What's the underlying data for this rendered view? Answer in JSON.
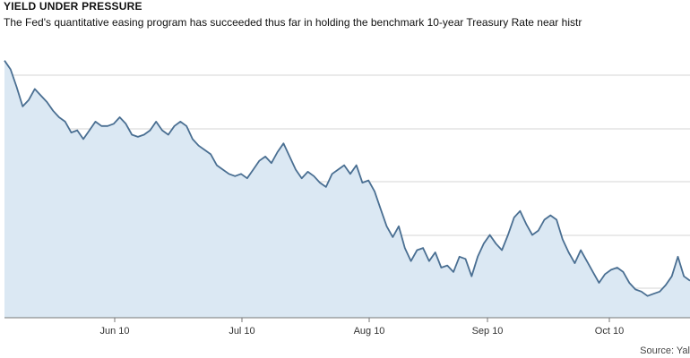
{
  "header": {
    "title": "YIELD UNDER PRESSURE",
    "subtitle": "The Fed's quantitative easing program has succeeded thus far in holding the benchmark 10-year Treasury Rate near histr"
  },
  "footer": {
    "source": "Source: Yal"
  },
  "colors": {
    "line": "#4a6f92",
    "fill": "#dbe8f3",
    "grid": "#d4d4d4",
    "axis": "#777777"
  },
  "chart_data": {
    "type": "area",
    "title": "YIELD UNDER PRESSURE",
    "xlabel": "",
    "ylabel": "",
    "grid": true,
    "x_tick_labels": [
      "Jun 10",
      "Jul 10",
      "Aug 10",
      "Sep 10",
      "Oct 10"
    ],
    "series": [
      {
        "values": [
          3.96,
          3.92,
          3.84,
          3.75,
          3.78,
          3.83,
          3.8,
          3.77,
          3.73,
          3.7,
          3.68,
          3.63,
          3.64,
          3.6,
          3.64,
          3.68,
          3.66,
          3.66,
          3.67,
          3.7,
          3.67,
          3.62,
          3.61,
          3.62,
          3.64,
          3.68,
          3.64,
          3.62,
          3.66,
          3.68,
          3.66,
          3.6,
          3.57,
          3.55,
          3.53,
          3.48,
          3.46,
          3.44,
          3.43,
          3.44,
          3.42,
          3.46,
          3.5,
          3.52,
          3.49,
          3.54,
          3.58,
          3.52,
          3.46,
          3.42,
          3.45,
          3.43,
          3.4,
          3.38,
          3.44,
          3.46,
          3.48,
          3.44,
          3.48,
          3.4,
          3.41,
          3.36,
          3.28,
          3.2,
          3.15,
          3.2,
          3.1,
          3.04,
          3.09,
          3.1,
          3.04,
          3.08,
          3.01,
          3.02,
          2.99,
          3.06,
          3.05,
          2.97,
          3.06,
          3.12,
          3.16,
          3.12,
          3.09,
          3.16,
          3.24,
          3.27,
          3.21,
          3.16,
          3.18,
          3.23,
          3.25,
          3.23,
          3.14,
          3.08,
          3.03,
          3.09,
          3.04,
          2.99,
          2.94,
          2.98,
          3.0,
          3.01,
          2.99,
          2.94,
          2.91,
          2.9,
          2.88,
          2.89,
          2.9,
          2.93,
          2.97,
          3.06,
          2.97,
          2.95
        ]
      }
    ]
  }
}
